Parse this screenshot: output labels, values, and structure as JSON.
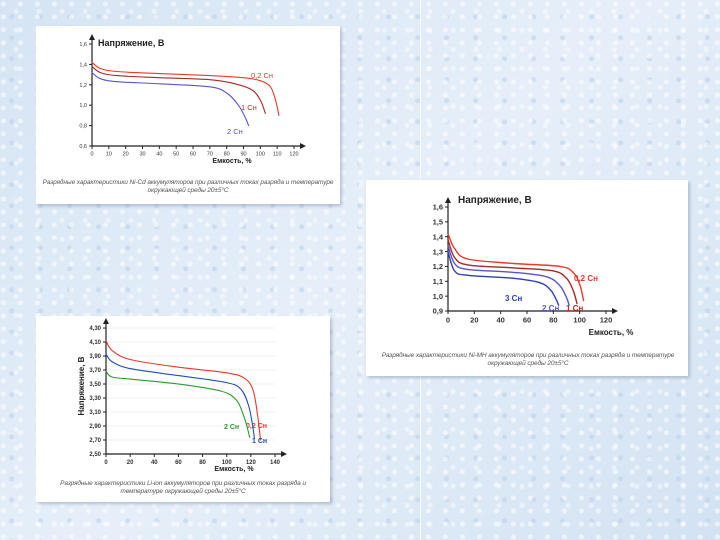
{
  "colors": {
    "c02": "#e8392e",
    "c1": "#a52a2a",
    "c1b": "#d21f1f",
    "c2": "#5656c8",
    "c3": "#2f3fb0",
    "green": "#2e9a2e",
    "blue": "#1f4fb0",
    "axis": "#222222"
  },
  "chart_data": [
    {
      "type": "line",
      "title": "Напряжение, В",
      "xlabel": "Емкость, %",
      "xlim": [
        0,
        120
      ],
      "ylim": [
        0.6,
        1.6
      ],
      "xticks": [
        "0",
        "10",
        "20",
        "30",
        "40",
        "50",
        "60",
        "70",
        "80",
        "90",
        "100",
        "110",
        "120"
      ],
      "yticks": [
        "0,6",
        "0,8",
        "1,0",
        "1,2",
        "1,4",
        "1,6"
      ],
      "series": [
        {
          "name": "0,2 Сн",
          "color": "#e8392e",
          "points": [
            [
              0,
              1.42
            ],
            [
              5,
              1.36
            ],
            [
              15,
              1.33
            ],
            [
              40,
              1.31
            ],
            [
              70,
              1.29
            ],
            [
              90,
              1.27
            ],
            [
              100,
              1.24
            ],
            [
              106,
              1.18
            ],
            [
              109,
              1.05
            ],
            [
              111,
              0.9
            ]
          ]
        },
        {
          "name": "1 Сн",
          "color": "#a52a2a",
          "points": [
            [
              0,
              1.38
            ],
            [
              5,
              1.32
            ],
            [
              15,
              1.29
            ],
            [
              40,
              1.27
            ],
            [
              70,
              1.25
            ],
            [
              85,
              1.21
            ],
            [
              95,
              1.15
            ],
            [
              100,
              1.05
            ],
            [
              103,
              0.92
            ]
          ]
        },
        {
          "name": "2 Сн",
          "color": "#5656c8",
          "points": [
            [
              0,
              1.32
            ],
            [
              5,
              1.26
            ],
            [
              15,
              1.23
            ],
            [
              40,
              1.21
            ],
            [
              70,
              1.18
            ],
            [
              80,
              1.12
            ],
            [
              87,
              1.0
            ],
            [
              91,
              0.88
            ],
            [
              93,
              0.8
            ]
          ]
        }
      ],
      "caption": "Разрядные характеристики Ni-Cd аккумуляторов при различных токах разряда и температуре окружающей среды 20±5°С"
    },
    {
      "type": "line",
      "title": "Напряжение, В",
      "xlabel": "Емкость, %",
      "xlim": [
        0,
        120
      ],
      "ylim": [
        0.9,
        1.6
      ],
      "xticks": [
        "0",
        "20",
        "40",
        "60",
        "80",
        "100",
        "120"
      ],
      "yticks": [
        "0,9",
        "1,0",
        "1,1",
        "1,2",
        "1,3",
        "1,4",
        "1,5",
        "1,6"
      ],
      "series": [
        {
          "name": "0,2 Сн",
          "color": "#e8392e",
          "points": [
            [
              0,
              1.42
            ],
            [
              5,
              1.32
            ],
            [
              15,
              1.25
            ],
            [
              50,
              1.22
            ],
            [
              85,
              1.2
            ],
            [
              95,
              1.16
            ],
            [
              100,
              1.08
            ],
            [
              103,
              0.97
            ]
          ]
        },
        {
          "name": "1 Сн",
          "color": "#a52a2a",
          "points": [
            [
              0,
              1.38
            ],
            [
              5,
              1.26
            ],
            [
              15,
              1.21
            ],
            [
              50,
              1.19
            ],
            [
              80,
              1.17
            ],
            [
              90,
              1.12
            ],
            [
              95,
              1.04
            ],
            [
              98,
              0.95
            ]
          ]
        },
        {
          "name": "2 Сн",
          "color": "#5656c8",
          "points": [
            [
              0,
              1.34
            ],
            [
              5,
              1.22
            ],
            [
              15,
              1.18
            ],
            [
              50,
              1.16
            ],
            [
              75,
              1.13
            ],
            [
              85,
              1.07
            ],
            [
              90,
              0.99
            ],
            [
              92,
              0.94
            ]
          ]
        },
        {
          "name": "3 Сн",
          "color": "#2f3fb0",
          "points": [
            [
              0,
              1.3
            ],
            [
              5,
              1.17
            ],
            [
              15,
              1.14
            ],
            [
              50,
              1.12
            ],
            [
              70,
              1.09
            ],
            [
              78,
              1.04
            ],
            [
              82,
              0.98
            ],
            [
              84,
              0.94
            ]
          ]
        }
      ],
      "caption": "Разрядные характеристики Ni-MH аккумуляторов при различных токах разряда и температуре окружающей среды 20±5°С"
    },
    {
      "type": "line",
      "ylabel": "Напряжение, В",
      "xlabel": "Емкость, %",
      "xlim": [
        0,
        140
      ],
      "ylim": [
        2.5,
        4.3
      ],
      "xticks": [
        "0",
        "20",
        "40",
        "60",
        "80",
        "100",
        "120",
        "140"
      ],
      "yticks": [
        "2,50",
        "2,70",
        "2,90",
        "3,10",
        "3,30",
        "3,50",
        "3,70",
        "3,90",
        "4,10",
        "4,30"
      ],
      "series": [
        {
          "name": "0,2 Сн",
          "color": "#e8392e",
          "points": [
            [
              0,
              4.12
            ],
            [
              5,
              3.98
            ],
            [
              20,
              3.85
            ],
            [
              60,
              3.74
            ],
            [
              100,
              3.66
            ],
            [
              115,
              3.58
            ],
            [
              122,
              3.4
            ],
            [
              126,
              3.0
            ],
            [
              128,
              2.7
            ]
          ]
        },
        {
          "name": "1 Сн",
          "color": "#1f4fb0",
          "points": [
            [
              0,
              3.93
            ],
            [
              5,
              3.82
            ],
            [
              20,
              3.72
            ],
            [
              60,
              3.62
            ],
            [
              100,
              3.52
            ],
            [
              112,
              3.42
            ],
            [
              118,
              3.2
            ],
            [
              121,
              2.95
            ],
            [
              123,
              2.72
            ]
          ]
        },
        {
          "name": "2 Сн",
          "color": "#2e9a2e",
          "points": [
            [
              0,
              3.68
            ],
            [
              5,
              3.6
            ],
            [
              20,
              3.57
            ],
            [
              60,
              3.5
            ],
            [
              95,
              3.4
            ],
            [
              108,
              3.27
            ],
            [
              114,
              3.05
            ],
            [
              117,
              2.88
            ],
            [
              119,
              2.74
            ]
          ]
        }
      ],
      "caption": "Разрядные характеристики Li-ion аккумуляторов при различных токах разряда и температуре окружающей среды 20±5°С"
    }
  ]
}
